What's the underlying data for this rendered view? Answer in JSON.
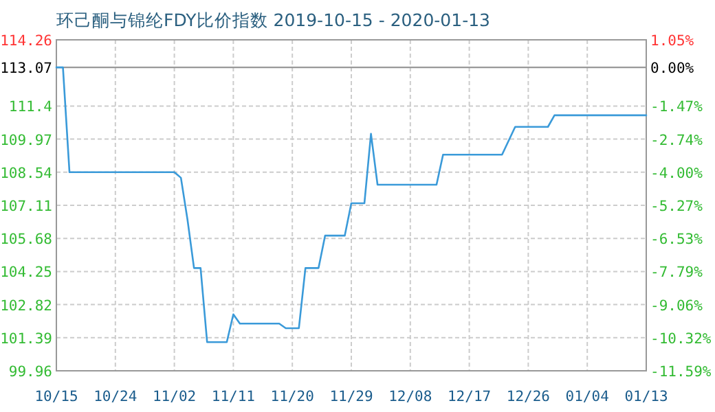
{
  "chart_data": {
    "type": "line",
    "title": "环己酮与锦纶FDY比价指数 2019-10-15 - 2020-01-13",
    "x": [
      "2019-10-15",
      "2019-10-16",
      "2019-10-17",
      "2019-11-02",
      "2019-11-03",
      "2019-11-04",
      "2019-11-05",
      "2019-11-06",
      "2019-11-07",
      "2019-11-10",
      "2019-11-11",
      "2019-11-12",
      "2019-11-18",
      "2019-11-19",
      "2019-11-21",
      "2019-11-22",
      "2019-11-24",
      "2019-11-25",
      "2019-11-28",
      "2019-11-29",
      "2019-12-01",
      "2019-12-02",
      "2019-12-03",
      "2019-12-12",
      "2019-12-13",
      "2019-12-22",
      "2019-12-24",
      "2019-12-29",
      "2019-12-30",
      "2020-01-13"
    ],
    "series": [
      {
        "color": "#3a9ad9",
        "values": [
          113.07,
          113.07,
          108.54,
          108.54,
          108.3,
          106.5,
          104.4,
          104.4,
          101.2,
          101.2,
          102.4,
          102.0,
          102.0,
          101.8,
          101.8,
          104.4,
          104.4,
          105.8,
          105.8,
          107.2,
          107.2,
          110.2,
          108.0,
          108.0,
          109.3,
          109.3,
          110.5,
          110.5,
          111.0,
          111.0
        ]
      }
    ],
    "xlim": [
      "2019-10-15",
      "2020-01-13"
    ],
    "xticks": [
      {
        "value": "2019-10-15",
        "label": "10/15"
      },
      {
        "value": "2019-10-24",
        "label": "10/24"
      },
      {
        "value": "2019-11-02",
        "label": "11/02"
      },
      {
        "value": "2019-11-11",
        "label": "11/11"
      },
      {
        "value": "2019-11-20",
        "label": "11/20"
      },
      {
        "value": "2019-11-29",
        "label": "11/29"
      },
      {
        "value": "2019-12-08",
        "label": "12/08"
      },
      {
        "value": "2019-12-17",
        "label": "12/17"
      },
      {
        "value": "2019-12-26",
        "label": "12/26"
      },
      {
        "value": "2020-01-04",
        "label": "01/04"
      },
      {
        "value": "2020-01-13",
        "label": "01/13"
      }
    ],
    "ylim": [
      99.96,
      114.26
    ],
    "yticks": [
      99.96,
      101.39,
      102.82,
      104.25,
      105.68,
      107.11,
      108.54,
      109.97,
      111.4,
      113.07,
      114.26
    ],
    "y2lim": [
      -11.59,
      1.05
    ],
    "y2ticks": [
      {
        "value": -11.59,
        "label": "-11.59%"
      },
      {
        "value": -10.32,
        "label": "-10.32%"
      },
      {
        "value": -9.06,
        "label": "-9.06%"
      },
      {
        "value": -7.79,
        "label": "-7.79%"
      },
      {
        "value": -6.53,
        "label": "-6.53%"
      },
      {
        "value": -5.27,
        "label": "-5.27%"
      },
      {
        "value": -4.0,
        "label": "-4.00%"
      },
      {
        "value": -2.74,
        "label": "-2.74%"
      },
      {
        "value": -1.47,
        "label": "-1.47%"
      },
      {
        "value": 0,
        "label": "0.00%"
      },
      {
        "value": 1.05,
        "label": "1.05%"
      }
    ],
    "ref_lines": [
      {
        "axis": "y",
        "value": 113.07,
        "color": "#999999"
      }
    ],
    "grid": true,
    "line_style": "solid",
    "marker": "none"
  }
}
